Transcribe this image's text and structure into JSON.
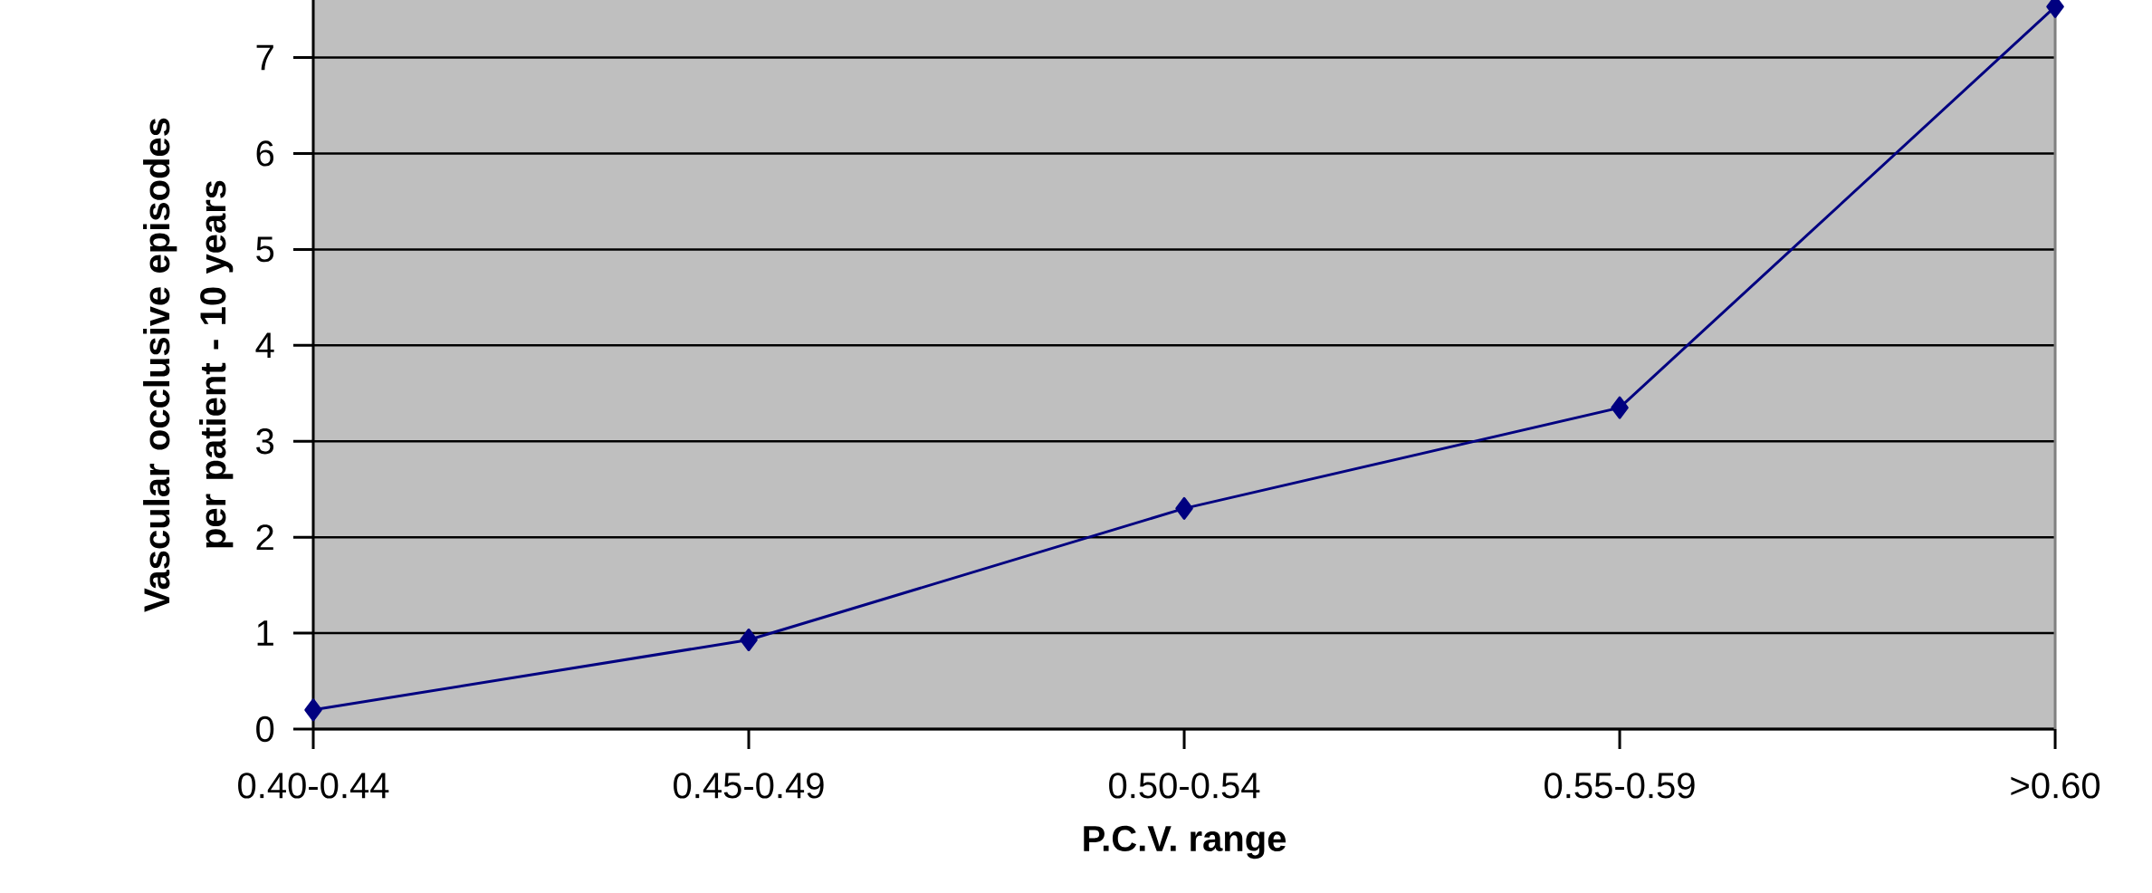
{
  "chart_data": {
    "type": "line",
    "xlabel": "P.C.V. range",
    "ylabel": "Vascular occlusive episodes per patient - 10 years",
    "categories": [
      "0.40-0.44",
      "0.45-0.49",
      "0.50-0.54",
      "0.55-0.59",
      ">0.60"
    ],
    "series": [
      {
        "color": "#000080",
        "values": [
          0.2,
          0.93,
          2.3,
          3.35,
          7.53
        ]
      }
    ],
    "ylim": [
      0,
      7.6
    ],
    "yticks": [
      0,
      1,
      2,
      3,
      4,
      5,
      6,
      7
    ],
    "grid": "y",
    "marker": "diamond",
    "line_style": "solid"
  }
}
